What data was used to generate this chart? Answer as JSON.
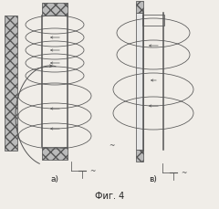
{
  "fig_label": "Фиг. 4",
  "sub_a": "а)",
  "sub_b": "в)",
  "bg_color": "#f0ede8",
  "line_color": "#555555",
  "lw_thin": 0.55,
  "lw_med": 0.8,
  "lw_thick": 1.1
}
